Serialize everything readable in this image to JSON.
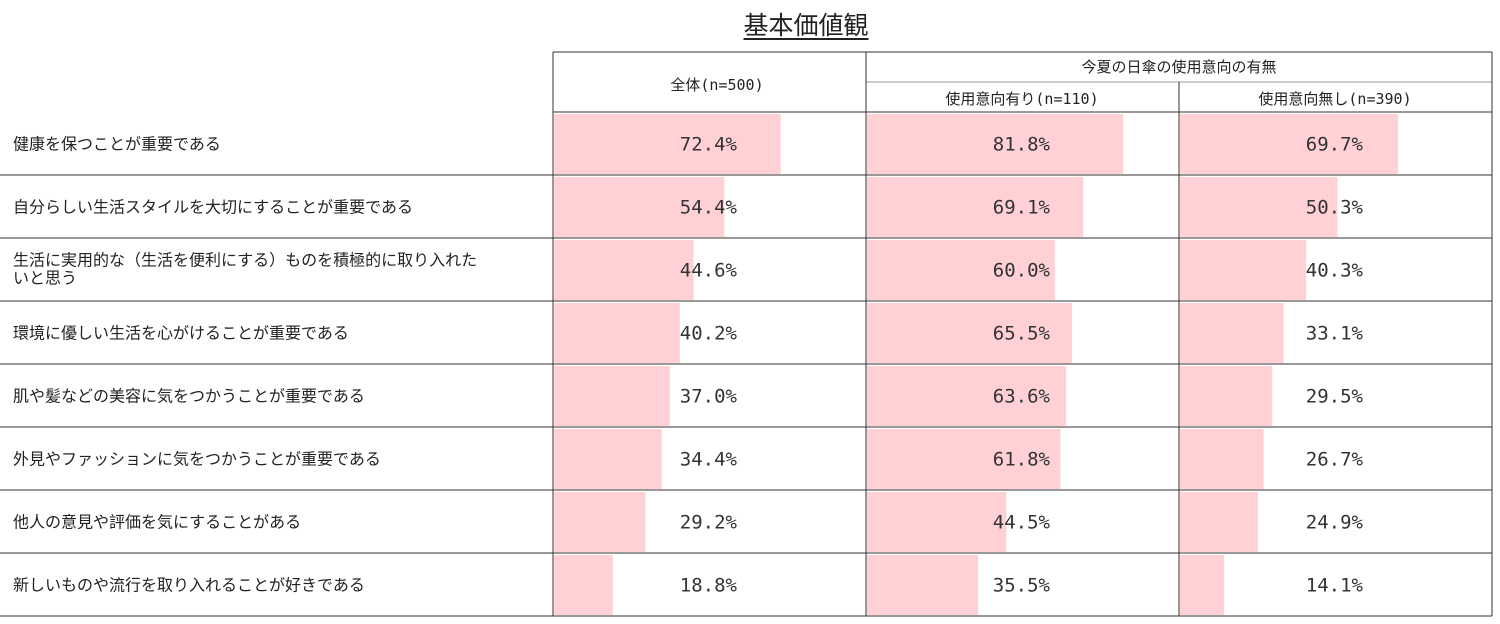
{
  "title": "基本価値観",
  "header": {
    "col_all": "全体(n=500)",
    "group_label": "今夏の日傘の使用意向の有無",
    "col_yes": "使用意向有り(n=110)",
    "col_no": "使用意向無し(n=390)"
  },
  "colors": {
    "bar": "#ffd1d4",
    "border": "#333333",
    "header_inner_rule": "#999999"
  },
  "chart_data": {
    "type": "bar",
    "orientation": "horizontal",
    "value_format": "percent, one decimal",
    "xlim": [
      0,
      100
    ],
    "categories": [
      "健康を保つことが重要である",
      "自分らしい生活スタイルを大切にすることが重要である",
      "生活に実用的な（生活を便利にする）ものを積極的に取り入れたいと思う",
      "環境に優しい生活を心がけることが重要である",
      "肌や髪などの美容に気をつかうことが重要である",
      "外見やファッションに気をつかうことが重要である",
      "他人の意見や評価を気にすることがある",
      "新しいものや流行を取り入れることが好きである"
    ],
    "category_lines": [
      [
        "健康を保つことが重要である"
      ],
      [
        "自分らしい生活スタイルを大切にすることが重要である"
      ],
      [
        "生活に実用的な（生活を便利にする）ものを積極的に取り入れた",
        "いと思う"
      ],
      [
        "環境に優しい生活を心がけることが重要である"
      ],
      [
        "肌や髪などの美容に気をつかうことが重要である"
      ],
      [
        "外見やファッションに気をつかうことが重要である"
      ],
      [
        "他人の意見や評価を気にすることがある"
      ],
      [
        "新しいものや流行を取り入れることが好きである"
      ]
    ],
    "series": [
      {
        "name": "全体(n=500)",
        "values": [
          72.4,
          54.4,
          44.6,
          40.2,
          37.0,
          34.4,
          29.2,
          18.8
        ]
      },
      {
        "name": "使用意向有り(n=110)",
        "values": [
          81.8,
          69.1,
          60.0,
          65.5,
          63.6,
          61.8,
          44.5,
          35.5
        ]
      },
      {
        "name": "使用意向無し(n=390)",
        "values": [
          69.7,
          50.3,
          40.3,
          33.1,
          29.5,
          26.7,
          24.9,
          14.1
        ]
      }
    ]
  }
}
